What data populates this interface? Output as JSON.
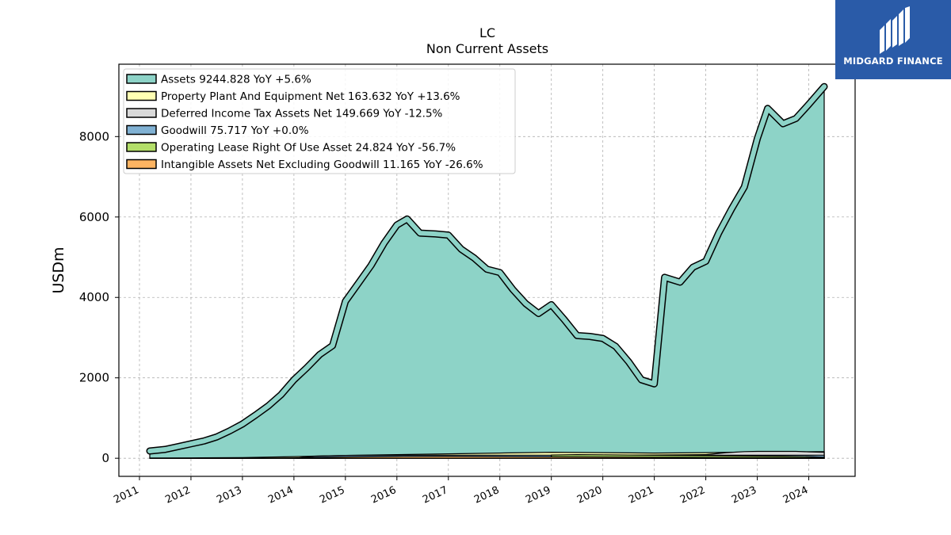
{
  "chart_data": {
    "type": "area",
    "title": "LC",
    "subtitle": "Non Current  Assets",
    "ylabel": "USDm",
    "xlabel": "",
    "ylim": [
      -450,
      9800
    ],
    "xlim": [
      2010.6,
      2024.9
    ],
    "yticks": [
      0,
      2000,
      4000,
      6000,
      8000
    ],
    "xticks": [
      "2011",
      "2012",
      "2013",
      "2014",
      "2015",
      "2016",
      "2017",
      "2018",
      "2019",
      "2020",
      "2021",
      "2022",
      "2023",
      "2024"
    ],
    "grid": true,
    "legend_position": "top-left",
    "series": [
      {
        "name": "Assets  9244.828 YoY +5.6%",
        "color": "#8dd3c7",
        "x": [
          2011.2,
          2011.5,
          2011.75,
          2012.0,
          2012.25,
          2012.5,
          2012.75,
          2013.0,
          2013.25,
          2013.5,
          2013.75,
          2014.0,
          2014.25,
          2014.5,
          2014.75,
          2015.0,
          2015.25,
          2015.5,
          2015.75,
          2016.0,
          2016.2,
          2016.45,
          2016.75,
          2017.0,
          2017.25,
          2017.5,
          2017.75,
          2018.0,
          2018.25,
          2018.5,
          2018.75,
          2019.0,
          2019.25,
          2019.5,
          2019.75,
          2020.0,
          2020.25,
          2020.5,
          2020.75,
          2021.0,
          2021.2,
          2021.5,
          2021.75,
          2022.0,
          2022.25,
          2022.5,
          2022.75,
          2023.0,
          2023.2,
          2023.5,
          2023.75,
          2024.0,
          2024.3
        ],
        "values": [
          180,
          220,
          290,
          360,
          430,
          530,
          680,
          850,
          1070,
          1300,
          1580,
          1950,
          2250,
          2580,
          2800,
          3900,
          4350,
          4800,
          5350,
          5800,
          5950,
          5600,
          5580,
          5550,
          5200,
          4980,
          4700,
          4620,
          4200,
          3850,
          3600,
          3820,
          3450,
          3050,
          3030,
          2980,
          2780,
          2400,
          1950,
          1850,
          4500,
          4380,
          4750,
          4900,
          5600,
          6200,
          6750,
          7950,
          8700,
          8320,
          8450,
          8800,
          9245
        ]
      },
      {
        "name": "Property Plant And Equipment Net  163.632 YoY +13.6%",
        "color": "#ffffb3",
        "x": [
          2011.2,
          2012.0,
          2013.0,
          2014.0,
          2015.0,
          2016.0,
          2017.0,
          2018.0,
          2018.5,
          2019.0,
          2020.0,
          2021.0,
          2022.0,
          2022.5,
          2023.0,
          2024.3
        ],
        "values": [
          5,
          10,
          15,
          40,
          70,
          90,
          110,
          130,
          140,
          150,
          140,
          130,
          140,
          150,
          155,
          164
        ]
      },
      {
        "name": "Deferred Income Tax Assets Net  149.669 YoY -12.5%",
        "color": "#d9d9d9",
        "x": [
          2011.2,
          2013.0,
          2014.0,
          2015.0,
          2016.0,
          2017.0,
          2018.0,
          2019.0,
          2020.0,
          2021.0,
          2022.0,
          2022.4,
          2022.75,
          2023.0,
          2023.75,
          2024.0,
          2024.3
        ],
        "values": [
          0,
          0,
          0,
          10,
          20,
          30,
          40,
          60,
          70,
          80,
          90,
          140,
          165,
          170,
          170,
          160,
          150
        ]
      },
      {
        "name": "Goodwill  75.717 YoY +0.0%",
        "color": "#80b1d3",
        "x": [
          2011.2,
          2012.0,
          2013.0,
          2014.0,
          2014.4,
          2015.0,
          2016.0,
          2017.0,
          2018.0,
          2019.0,
          2020.0,
          2021.0,
          2022.0,
          2023.0,
          2024.3
        ],
        "values": [
          0,
          0,
          0,
          0,
          50,
          70,
          75,
          76,
          76,
          76,
          76,
          76,
          76,
          76,
          76
        ]
      },
      {
        "name": "Operating Lease Right Of Use Asset  24.824 YoY -56.7%",
        "color": "#b3de69",
        "x": [
          2019.0,
          2019.5,
          2020.0,
          2020.5,
          2021.0,
          2021.5,
          2022.0,
          2022.5,
          2023.0,
          2023.5,
          2024.0,
          2024.3
        ],
        "values": [
          80,
          90,
          85,
          80,
          75,
          70,
          65,
          60,
          55,
          50,
          40,
          25
        ]
      },
      {
        "name": "Intangible Assets Net Excluding Goodwill  11.165 YoY -26.6%",
        "color": "#fdb462",
        "x": [
          2011.2,
          2013.0,
          2014.0,
          2015.0,
          2016.0,
          2017.0,
          2018.0,
          2019.0,
          2020.0,
          2021.0,
          2022.0,
          2023.0,
          2024.3
        ],
        "values": [
          0,
          0,
          10,
          30,
          40,
          45,
          40,
          35,
          30,
          25,
          20,
          15,
          11
        ]
      }
    ]
  },
  "logo": {
    "text": "MIDGARD FINANCE",
    "color": "#2a5ba8"
  }
}
